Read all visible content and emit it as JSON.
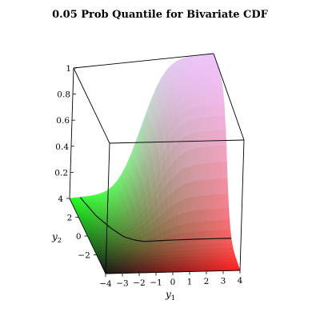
{
  "chart_data": {
    "type": "surface3d",
    "title": "0.05 Prob Quantile for Bivariate CDF",
    "xlabel": "y",
    "xlabel_sub": "1",
    "ylabel": "y",
    "ylabel_sub": "2",
    "zlabel": "",
    "xlim": [
      -4,
      4
    ],
    "ylim": [
      -4,
      4
    ],
    "zlim": [
      0,
      1
    ],
    "x_ticks": [
      "−4",
      "−3",
      "−2",
      "−1",
      "0",
      "1",
      "2",
      "3",
      "4"
    ],
    "y_ticks": [
      "4",
      "2",
      "0",
      "−2"
    ],
    "z_ticks": [
      "0.2",
      "0.4",
      "0.6",
      "0.8",
      "1"
    ],
    "surface": "bivariate normal CDF F(y1, y2)",
    "contour_level": 0.05,
    "contour_points": [
      {
        "y1": -3.4,
        "y2": 4.0
      },
      {
        "y1": -3.0,
        "y2": 2.0
      },
      {
        "y1": -2.5,
        "y2": 0.6
      },
      {
        "y1": -2.0,
        "y2": -0.4
      },
      {
        "y1": -1.5,
        "y2": -0.85
      },
      {
        "y1": -1.0,
        "y2": -1.15
      },
      {
        "y1": 0.0,
        "y2": -1.4
      },
      {
        "y1": 1.0,
        "y2": -1.55
      },
      {
        "y1": 2.0,
        "y2": -1.6
      },
      {
        "y1": 3.0,
        "y2": -1.62
      },
      {
        "y1": 4.0,
        "y2": -1.64
      }
    ],
    "grid": false,
    "legend": "none",
    "colors": {
      "low": "#1a1a1a",
      "y1_high": "#ff2020",
      "y2_high": "#20ff20",
      "top": "#f0c0ff"
    }
  }
}
